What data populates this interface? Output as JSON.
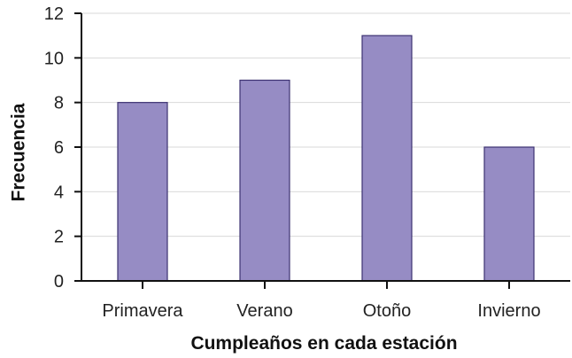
{
  "chart_data": {
    "type": "bar",
    "categories": [
      "Primavera",
      "Verano",
      "Otoño",
      "Invierno"
    ],
    "values": [
      8,
      9,
      11,
      6
    ],
    "title": "",
    "xlabel": "Cumpleaños en cada estación",
    "ylabel": "Frecuencia",
    "ylim": [
      0,
      12
    ],
    "yticks": [
      0,
      2,
      4,
      6,
      8,
      10,
      12
    ],
    "grid": true,
    "legend": "none",
    "bar_color": "#968cc4",
    "bar_edge_color": "#3d3272"
  }
}
